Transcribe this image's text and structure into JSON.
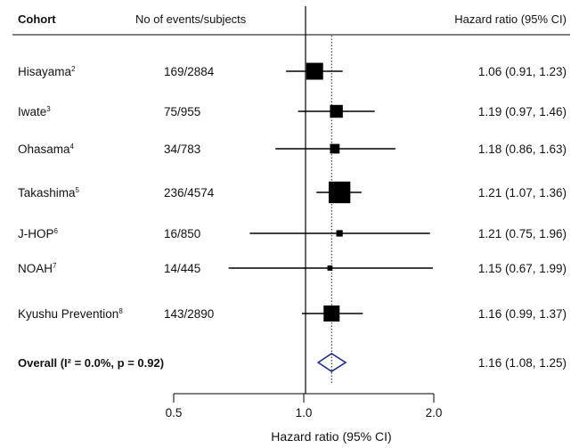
{
  "chart_data": {
    "type": "forest",
    "columns": {
      "cohort": "Cohort",
      "events": "No of events/subjects",
      "hr": "Hazard ratio (95% CI)"
    },
    "xlabel": "Hazard ratio (95% CI)",
    "x_scale": "log",
    "xlim": [
      0.5,
      2.0
    ],
    "x_ticks": [
      {
        "value": 0.5,
        "label": "0.5"
      },
      {
        "value": 1.0,
        "label": "1.0"
      },
      {
        "value": 2.0,
        "label": "2.0"
      }
    ],
    "null_line": 1.0,
    "rows": [
      {
        "cohort": "Hisayama",
        "ref": "2",
        "events": "169/2884",
        "hr": 1.06,
        "lo": 0.91,
        "hi": 1.23,
        "hr_text": "1.06 (0.91, 1.23)",
        "weight": 1.05
      },
      {
        "cohort": "Iwate",
        "ref": "3",
        "events": "75/955",
        "hr": 1.19,
        "lo": 0.97,
        "hi": 1.46,
        "hr_text": "1.19 (0.97, 1.46)",
        "weight": 0.8
      },
      {
        "cohort": "Ohasama",
        "ref": "4",
        "events": "34/783",
        "hr": 1.18,
        "lo": 0.86,
        "hi": 1.63,
        "hr_text": "1.18 (0.86, 1.63)",
        "weight": 0.6
      },
      {
        "cohort": "Takashima",
        "ref": "5",
        "events": "236/4574",
        "hr": 1.21,
        "lo": 1.07,
        "hi": 1.36,
        "hr_text": "1.21 (1.07, 1.36)",
        "weight": 1.35
      },
      {
        "cohort": "J-HOP",
        "ref": "6",
        "events": "16/850",
        "hr": 1.21,
        "lo": 0.75,
        "hi": 1.96,
        "hr_text": "1.21 (0.75, 1.96)",
        "weight": 0.4
      },
      {
        "cohort": "NOAH",
        "ref": "7",
        "events": "14/445",
        "hr": 1.15,
        "lo": 0.67,
        "hi": 1.99,
        "hr_text": "1.15 (0.67, 1.99)",
        "weight": 0.32
      },
      {
        "cohort": "Kyushu Prevention",
        "ref": "8",
        "events": "143/2890",
        "hr": 1.16,
        "lo": 0.99,
        "hi": 1.37,
        "hr_text": "1.16 (0.99, 1.37)",
        "weight": 1.0
      }
    ],
    "overall": {
      "label": "Overall (I² = 0.0%, p = 0.92)",
      "hr": 1.16,
      "lo": 1.08,
      "hi": 1.25,
      "hr_text": "1.16 (1.08, 1.25)",
      "color": "#1c2f8c"
    },
    "colors": {
      "marker": "#000000",
      "diamond": "#1c2f8c",
      "reference": "#000000"
    }
  }
}
